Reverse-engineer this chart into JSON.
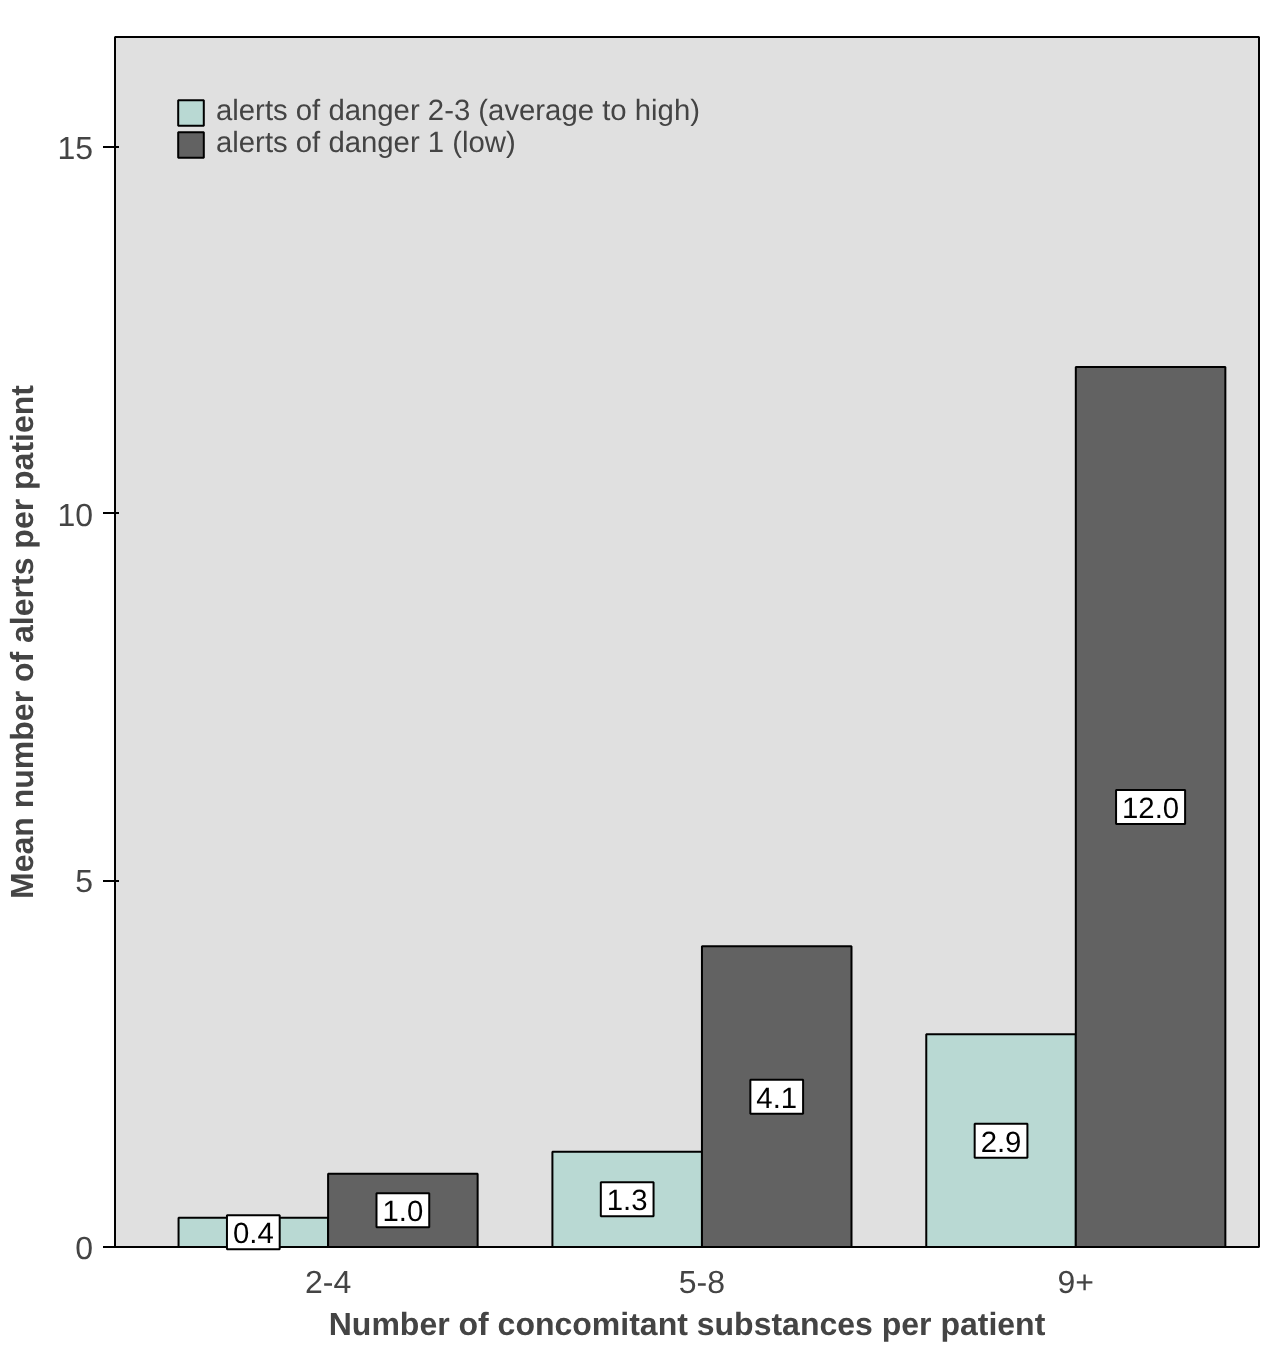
{
  "chart_data": {
    "type": "bar",
    "xlabel": "Number of concomitant substances per patient",
    "ylabel": "Mean number of alerts per patient",
    "categories": [
      "2-4",
      "5-8",
      "9+"
    ],
    "series": [
      {
        "name": "alerts of danger 2-3 (average to high)",
        "color": "#b9d9d3",
        "values": [
          0.4,
          1.3,
          2.9
        ],
        "value_labels": [
          "0.4",
          "1.3",
          "2.9"
        ]
      },
      {
        "name": "alerts of danger 1 (low)",
        "color": "#626262",
        "values": [
          1.0,
          4.1,
          12.0
        ],
        "value_labels": [
          "1.0",
          "4.1",
          "12.0"
        ]
      }
    ],
    "ylim": [
      0,
      16.5
    ],
    "yticks": [
      0,
      5,
      10,
      15
    ],
    "legend": "top left",
    "grid": false
  }
}
